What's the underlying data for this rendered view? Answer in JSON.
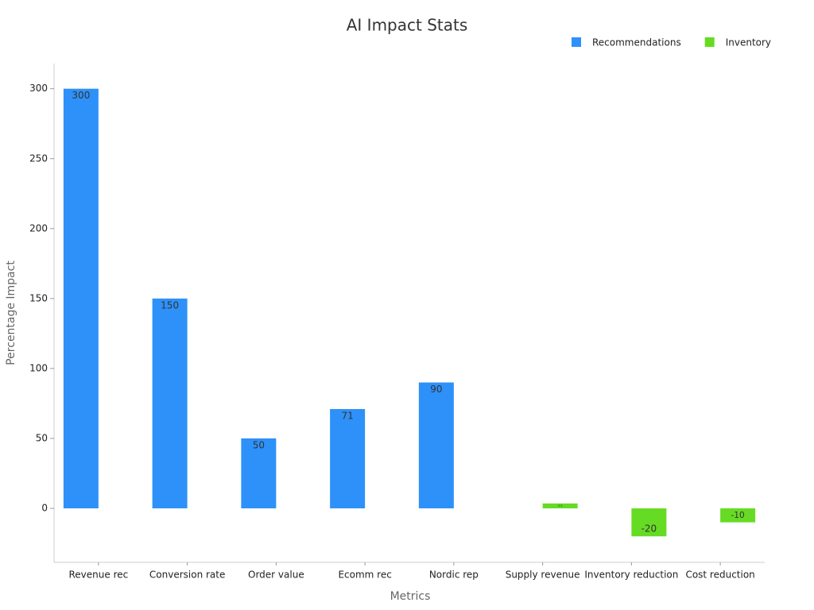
{
  "chart_data": {
    "type": "bar",
    "title": "AI Impact Stats",
    "x_label": "Metrics",
    "y_label": "Percentage Impact",
    "categories": [
      "Revenue rec",
      "Conversion rate",
      "Order value",
      "Ecomm rec",
      "Nordic rep",
      "Supply revenue",
      "Inventory reduction",
      "Cost reduction"
    ],
    "series": [
      {
        "name": "Recommendations",
        "color": "#2e91f9",
        "values": [
          300,
          150,
          50,
          71,
          90,
          null,
          null,
          null
        ]
      },
      {
        "name": "Inventory",
        "color": "#66db23",
        "values": [
          null,
          null,
          null,
          null,
          null,
          3.5,
          -20,
          -10
        ]
      }
    ],
    "ylim": [
      -38.6,
      318
    ],
    "yticks": [
      0,
      50,
      100,
      150,
      200,
      250,
      300
    ],
    "grid": false,
    "legend": "top-right"
  }
}
